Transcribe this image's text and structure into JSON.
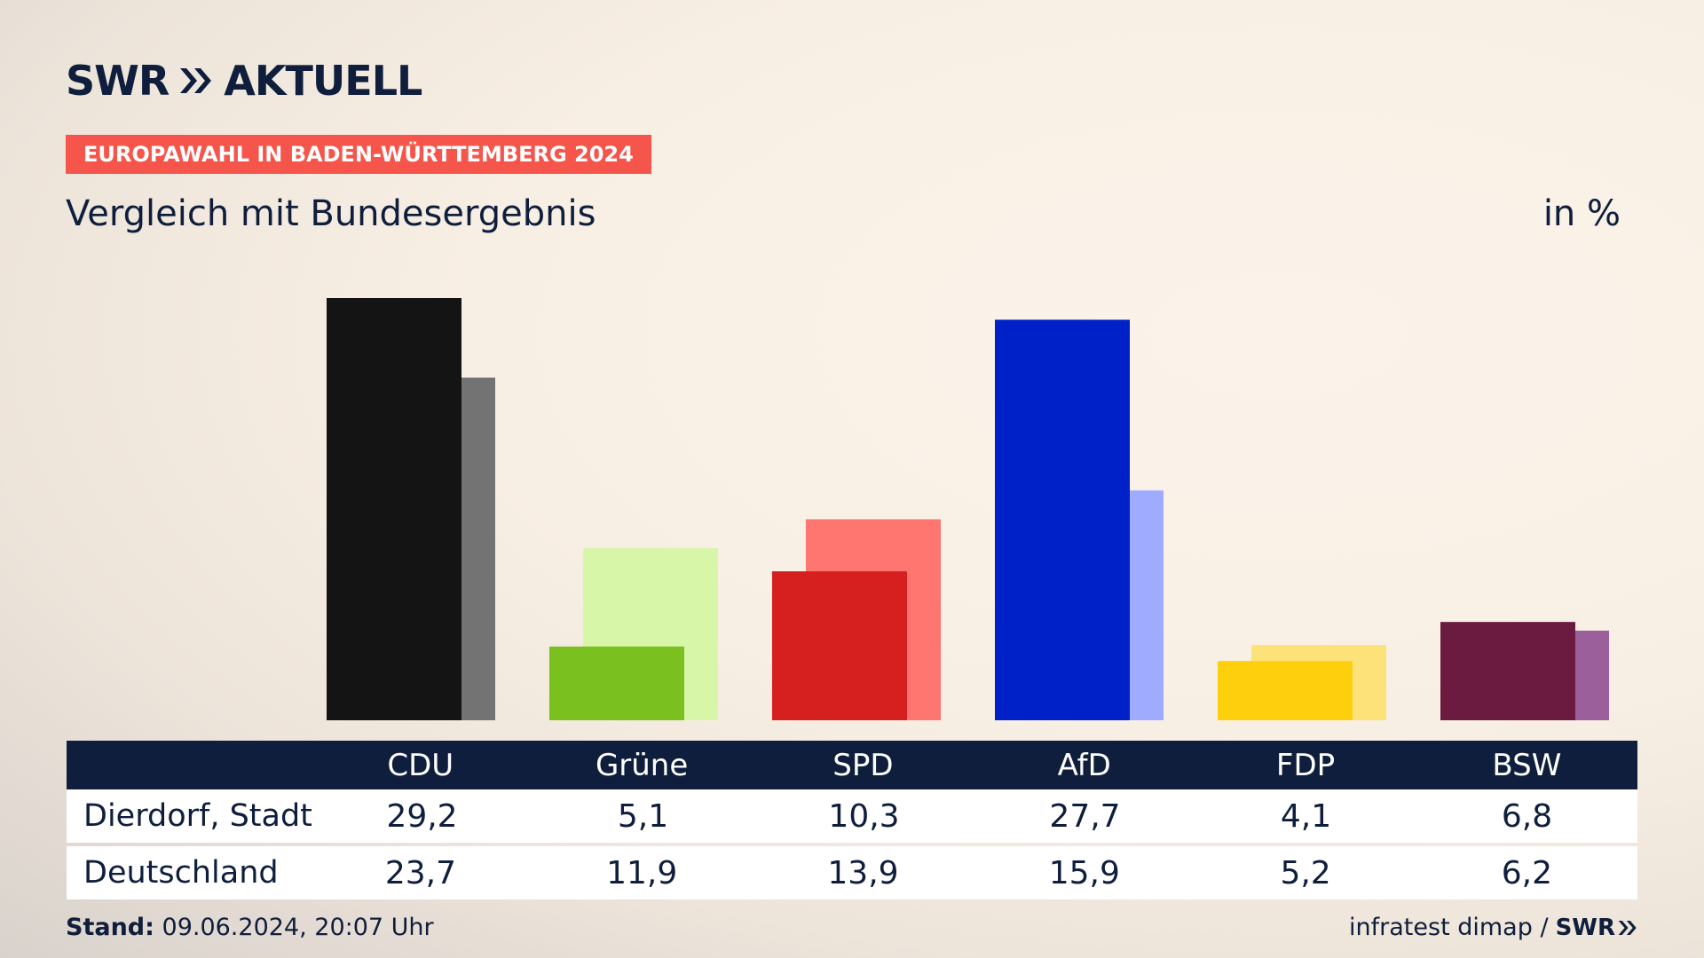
{
  "header": {
    "brand": "SWR",
    "brand_suffix": "AKTUELL",
    "tag": "EUROPAWAHL IN BADEN-WÜRTTEMBERG 2024",
    "subtitle": "Vergleich mit Bundesergebnis",
    "unit": "in %"
  },
  "chart_data": {
    "type": "bar",
    "categories": [
      "CDU",
      "Grüne",
      "SPD",
      "AfD",
      "FDP",
      "BSW"
    ],
    "series": [
      {
        "name": "Dierdorf, Stadt",
        "values": [
          29.2,
          5.1,
          10.3,
          27.7,
          4.1,
          6.8
        ]
      },
      {
        "name": "Deutschland",
        "values": [
          23.7,
          11.9,
          13.9,
          15.9,
          5.2,
          6.2
        ]
      }
    ],
    "colors": {
      "primary": [
        "#141414",
        "#7ac01e",
        "#d61f1f",
        "#0020c8",
        "#fecf0c",
        "#6b1a40"
      ],
      "secondary": [
        "#737373",
        "#d8f6a8",
        "#ff7570",
        "#9fabff",
        "#fde27a",
        "#9b5f9b"
      ]
    },
    "ylim": [
      0,
      29.2
    ]
  },
  "table": {
    "headers": [
      "CDU",
      "Grüne",
      "SPD",
      "AfD",
      "FDP",
      "BSW"
    ],
    "rows": [
      {
        "label": "Dierdorf, Stadt",
        "values": [
          "29,2",
          "5,1",
          "10,3",
          "27,7",
          "4,1",
          "6,8"
        ]
      },
      {
        "label": "Deutschland",
        "values": [
          "23,7",
          "11,9",
          "13,9",
          "15,9",
          "5,2",
          "6,2"
        ]
      }
    ]
  },
  "footer": {
    "stand_label": "Stand:",
    "stand_value": "09.06.2024, 20:07 Uhr",
    "source": "infratest dimap /",
    "source_brand": "SWR"
  }
}
